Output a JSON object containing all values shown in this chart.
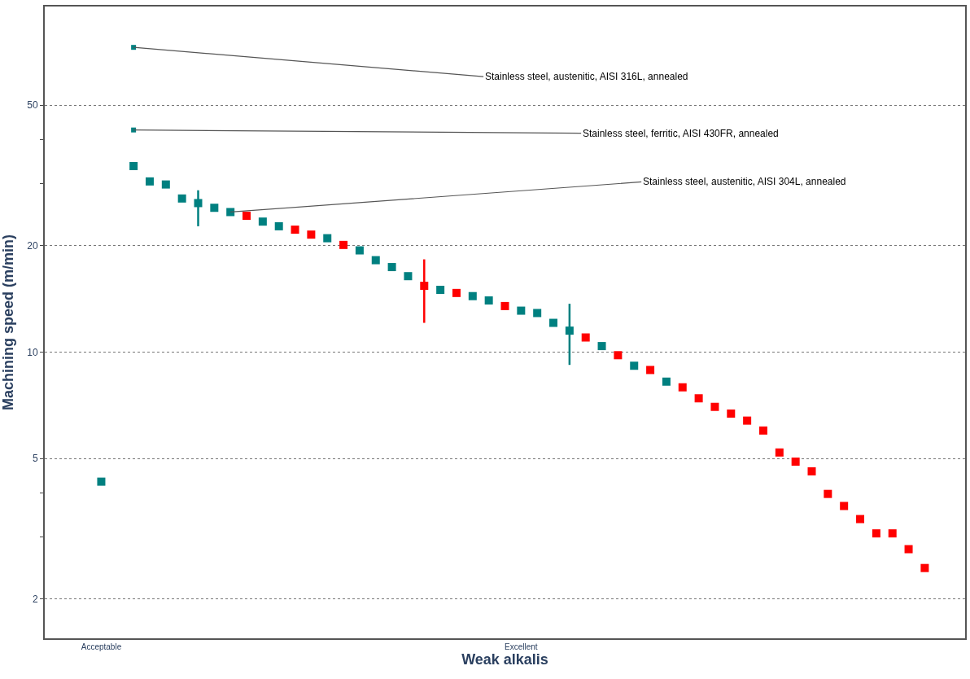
{
  "chart_data": {
    "type": "scatter",
    "xlabel": "Weak alkalis",
    "ylabel": "Machining speed (m/min)",
    "categories": [
      null,
      null,
      null,
      "Acceptable",
      null,
      null,
      null,
      null,
      null,
      null,
      null,
      null,
      null,
      null,
      null,
      null,
      null,
      null,
      null,
      null,
      null,
      null,
      null,
      null,
      null,
      null,
      null,
      null,
      null,
      "Excellent",
      null,
      null,
      null,
      null,
      null,
      null,
      null,
      null,
      null,
      null,
      null,
      null,
      null,
      null,
      null,
      null,
      null,
      null,
      null,
      null,
      null,
      null,
      null,
      null,
      null,
      null,
      null
    ],
    "series": [
      {
        "colors": [
          "#008080",
          "#008080",
          "#008080",
          "#008080",
          "#008080",
          "#008080",
          "#008080",
          "#008080",
          "#008080",
          "#008080",
          "#008080",
          "#008080",
          "#ff0000",
          "#008080",
          "#008080",
          "#ff0000",
          "#ff0000",
          "#008080",
          "#ff0000",
          "#008080",
          "#008080",
          "#008080",
          "#008080",
          "#ff0000",
          "#008080",
          "#ff0000",
          "#008080",
          "#008080",
          "#ff0000",
          "#008080",
          "#008080",
          "#008080",
          "#008080",
          "#ff0000",
          "#008080",
          "#ff0000",
          "#008080",
          "#ff0000",
          "#008080",
          "#ff0000",
          "#ff0000",
          "#ff0000",
          "#ff0000",
          "#ff0000",
          "#ff0000",
          "#ff0000",
          "#ff0000",
          "#ff0000",
          "#ff0000",
          "#ff0000",
          "#ff0000",
          "#ff0000",
          "#ff0000",
          "#ff0000",
          "#ff0000",
          "#008080",
          "#008080"
        ],
        "values": [
          null,
          null,
          null,
          4.3,
          null,
          33.6,
          30.4,
          29.8,
          27.2,
          26.4,
          25.6,
          null,
          24.3,
          23.4,
          22.7,
          22.2,
          21.5,
          21.0,
          20.1,
          19.4,
          18.2,
          17.4,
          16.4,
          15.4,
          15.0,
          14.7,
          14.4,
          14.0,
          13.5,
          13.1,
          12.9,
          12.1,
          11.5,
          11.0,
          10.4,
          9.8,
          9.15,
          8.9,
          8.25,
          7.95,
          7.4,
          7.0,
          6.7,
          6.4,
          6.0,
          5.2,
          4.9,
          4.6,
          3.97,
          3.67,
          3.37,
          3.07,
          3.07,
          2.77,
          2.45,
          null,
          null
        ],
        "errors": [
          null,
          null,
          null,
          null,
          null,
          null,
          null,
          null,
          null,
          [
            22.7,
            28.7
          ],
          null,
          null,
          null,
          null,
          null,
          null,
          null,
          null,
          null,
          null,
          null,
          null,
          null,
          [
            12.1,
            18.3
          ],
          null,
          null,
          null,
          null,
          null,
          null,
          null,
          null,
          [
            9.2,
            13.7
          ],
          null,
          null,
          null,
          null,
          null,
          null,
          null,
          null,
          null,
          null,
          null,
          null,
          null,
          null,
          null,
          null,
          null,
          null,
          null,
          null,
          null,
          null,
          null,
          null
        ]
      },
      {
        "name": "Stainless steel, austenitic, AISI 316L, annealed",
        "color": "#008080",
        "values": [
          null,
          null,
          null,
          null,
          null,
          72.8,
          null,
          null,
          null,
          null,
          null,
          null,
          null,
          null,
          null,
          null,
          null,
          null,
          null,
          null,
          null,
          null,
          null,
          null,
          null,
          null,
          null,
          null,
          null,
          null,
          null,
          null,
          null,
          null,
          null,
          null,
          null,
          null,
          null,
          null,
          null,
          null,
          null,
          null,
          null,
          null,
          null,
          null,
          null,
          null,
          null,
          null,
          null,
          null,
          null,
          null,
          null
        ]
      },
      {
        "name": "Stainless steel, ferritic, AISI 430FR, annealed",
        "color": "#008080",
        "values": [
          null,
          null,
          null,
          null,
          null,
          42.5,
          null,
          null,
          null,
          null,
          null,
          null,
          null,
          null,
          null,
          null,
          null,
          null,
          null,
          null,
          null,
          null,
          null,
          null,
          null,
          null,
          null,
          null,
          null,
          null,
          null,
          null,
          null,
          null,
          null,
          null,
          null,
          null,
          null,
          null,
          null,
          null,
          null,
          null,
          null,
          null,
          null,
          null,
          null,
          null,
          null,
          null,
          null,
          null,
          null,
          null,
          null
        ]
      },
      {
        "name": "Stainless steel, austenitic, AISI 304L, annealed",
        "color": "#008080",
        "values": [
          null,
          null,
          null,
          null,
          null,
          null,
          null,
          null,
          null,
          null,
          null,
          24.9,
          null,
          null,
          null,
          null,
          null,
          null,
          null,
          null,
          null,
          null,
          null,
          null,
          null,
          null,
          null,
          null,
          null,
          null,
          null,
          null,
          null,
          null,
          null,
          null,
          null,
          null,
          null,
          null,
          null,
          null,
          null,
          null,
          null,
          null,
          null,
          null,
          null,
          null,
          null,
          null,
          null,
          null,
          null,
          null,
          null
        ]
      }
    ],
    "ylim": [
      1.55,
      95
    ],
    "yticks": [
      2,
      {
        "value": 3,
        "label": null
      },
      {
        "value": 4,
        "label": null
      },
      5,
      10,
      20,
      {
        "value": 30,
        "label": null
      },
      {
        "value": 40,
        "label": null
      },
      50
    ],
    "log": true,
    "grid": "y",
    "legend": false,
    "marker": "square"
  }
}
